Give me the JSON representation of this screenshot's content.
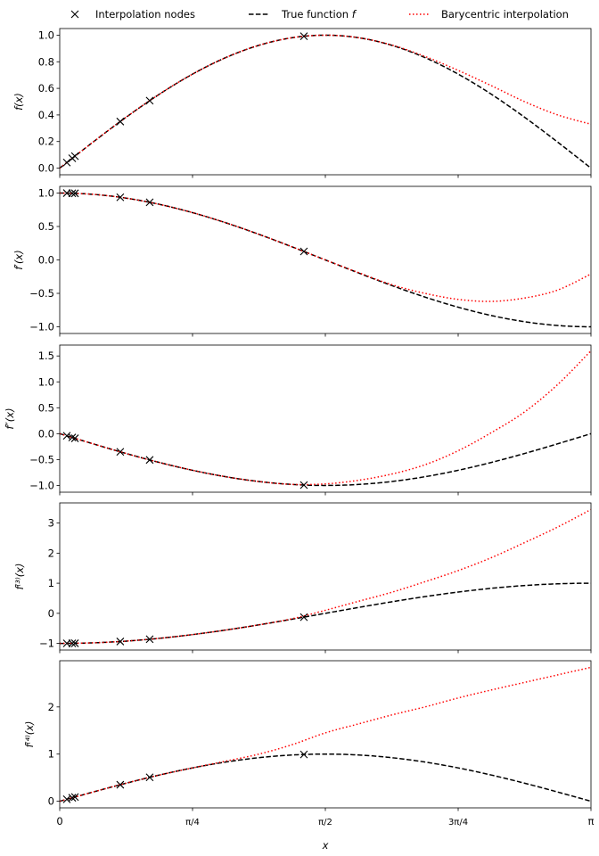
{
  "chart_data": {
    "type": "line",
    "legend": {
      "placement": "top",
      "entries": [
        {
          "label": "Interpolation nodes",
          "style": "x-marker",
          "color": "#000000"
        },
        {
          "label": "True function ",
          "label_italic": "f",
          "style": "dashed",
          "color": "#000000"
        },
        {
          "label": "Barycentric interpolation",
          "style": "dotted",
          "color": "#ff0000"
        }
      ]
    },
    "xlabel": "x",
    "xlim": [
      0,
      3.14159
    ],
    "xticks": [
      {
        "value": 0,
        "label": "0"
      },
      {
        "value": 0.7854,
        "label": "π/4"
      },
      {
        "value": 1.5708,
        "label": "π/2"
      },
      {
        "value": 2.3562,
        "label": "3π/4"
      },
      {
        "value": 3.14159,
        "label": "π"
      }
    ],
    "nodes_x": [
      0.042,
      0.074,
      0.09,
      0.358,
      0.532,
      1.444
    ],
    "sample_x_step": "π/16",
    "colors": {
      "true": "#000000",
      "interp": "#ff0000",
      "nodes": "#000000"
    },
    "panels": [
      {
        "ylabel": "f(x)",
        "true_function": "sin",
        "ylim": [
          -0.05,
          1.05
        ],
        "yticks": [
          {
            "value": 0,
            "label": "0.0"
          },
          {
            "value": 0.2,
            "label": "0.2"
          },
          {
            "value": 0.4,
            "label": "0.4"
          },
          {
            "value": 0.6,
            "label": "0.6"
          },
          {
            "value": 0.8,
            "label": "0.8"
          },
          {
            "value": 1.0,
            "label": "1.0"
          }
        ],
        "interp_values": [
          0,
          0.195,
          0.383,
          0.556,
          0.707,
          0.831,
          0.924,
          0.981,
          1.0,
          0.981,
          0.926,
          0.84,
          0.735,
          0.62,
          0.5,
          0.4,
          0.33
        ]
      },
      {
        "ylabel": "f′(x)",
        "true_function": "cos",
        "ylim": [
          -1.1,
          1.1
        ],
        "yticks": [
          {
            "value": -1,
            "label": "−1.0"
          },
          {
            "value": -0.5,
            "label": "−0.5"
          },
          {
            "value": 0,
            "label": "0.0"
          },
          {
            "value": 0.5,
            "label": "0.5"
          },
          {
            "value": 1,
            "label": "1.0"
          }
        ],
        "interp_values": [
          1,
          0.981,
          0.924,
          0.831,
          0.707,
          0.556,
          0.383,
          0.195,
          0,
          -0.19,
          -0.37,
          -0.5,
          -0.59,
          -0.62,
          -0.57,
          -0.45,
          -0.21
        ]
      },
      {
        "ylabel": "f″(x)",
        "true_function": "-sin",
        "ylim": [
          -1.13,
          1.71
        ],
        "yticks": [
          {
            "value": -1,
            "label": "−1.0"
          },
          {
            "value": -0.5,
            "label": "−0.5"
          },
          {
            "value": 0,
            "label": "0.0"
          },
          {
            "value": 0.5,
            "label": "0.5"
          },
          {
            "value": 1,
            "label": "1.0"
          },
          {
            "value": 1.5,
            "label": "1.5"
          }
        ],
        "interp_values": [
          0,
          -0.195,
          -0.383,
          -0.556,
          -0.707,
          -0.831,
          -0.924,
          -0.98,
          -0.97,
          -0.9,
          -0.78,
          -0.6,
          -0.33,
          0.02,
          0.42,
          0.95,
          1.6
        ]
      },
      {
        "ylabel": "f⁽³⁾(x)",
        "true_function": "-cos",
        "ylim": [
          -1.22,
          3.67
        ],
        "yticks": [
          {
            "value": -1,
            "label": "−1"
          },
          {
            "value": 0,
            "label": "0"
          },
          {
            "value": 1,
            "label": "1"
          },
          {
            "value": 2,
            "label": "2"
          },
          {
            "value": 3,
            "label": "3"
          }
        ],
        "interp_values": [
          -1,
          -0.981,
          -0.924,
          -0.831,
          -0.707,
          -0.556,
          -0.383,
          -0.18,
          0.1,
          0.4,
          0.7,
          1.05,
          1.42,
          1.85,
          2.35,
          2.87,
          3.45
        ]
      },
      {
        "ylabel": "f⁽⁴⁾(x)",
        "true_function": "sin",
        "ylim": [
          -0.14,
          2.98
        ],
        "yticks": [
          {
            "value": 0,
            "label": "0"
          },
          {
            "value": 1,
            "label": "1"
          },
          {
            "value": 2,
            "label": "2"
          }
        ],
        "interp_values": [
          0,
          0.195,
          0.383,
          0.556,
          0.707,
          0.85,
          1.0,
          1.2,
          1.45,
          1.64,
          1.83,
          2.0,
          2.19,
          2.36,
          2.52,
          2.68,
          2.84
        ]
      }
    ]
  }
}
